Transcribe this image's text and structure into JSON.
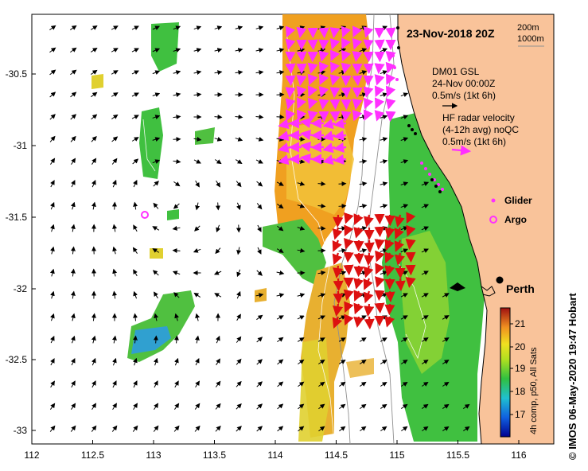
{
  "title": "23-Nov-2018 20Z",
  "depth_contours": [
    "200m",
    "1000m"
  ],
  "wind": {
    "source": "DM01 GSL",
    "time": "24-Nov 00:00Z",
    "scale": "0.5m/s (1kt 6h)"
  },
  "hf_radar": {
    "line1": "HF radar velocity",
    "line2": "(4-12h avg) noQC",
    "scale": "0.5m/s (1kt 6h)"
  },
  "legend": {
    "glider": "Glider",
    "argo": "Argo"
  },
  "city": "Perth",
  "colorbar": {
    "label": "4h comp, p50, All Sats",
    "ticks": [
      "21",
      "20",
      "19",
      "18",
      "17"
    ],
    "range": [
      16,
      21.5
    ]
  },
  "x_ticks": [
    "112",
    "112.5",
    "113",
    "113.5",
    "114",
    "114.5",
    "115",
    "115.5",
    "116"
  ],
  "y_ticks": [
    "-30.5",
    "-31",
    "-31.5",
    "-32",
    "-32.5",
    "-33"
  ],
  "credit": "© IMOS 06-May-2020 19:47 Hobart",
  "colors": {
    "land": "#f9c39a",
    "sst_warm": "#f0a020",
    "sst_mid": "#e0d030",
    "sst_cool": "#40c040",
    "sst_cold": "#30a0d0",
    "radar_north": "#ff30ff",
    "radar_south": "#dd1010",
    "glider": "#ff30ff"
  }
}
